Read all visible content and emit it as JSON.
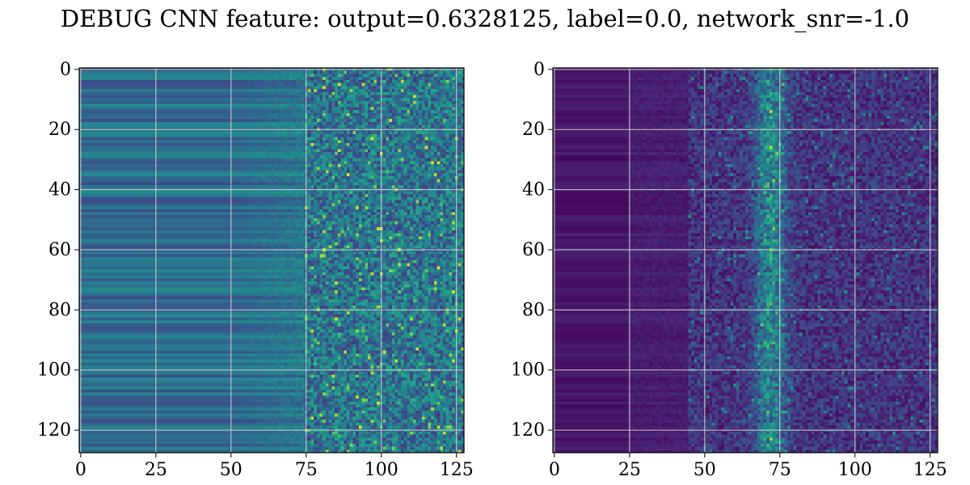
{
  "title": "DEBUG CNN feature: output=0.6328125, label=0.0, network_snr=-1.0",
  "chart_data": [
    {
      "type": "heatmap",
      "colormap": "viridis",
      "rows": 128,
      "cols": 128,
      "x_range": [
        0,
        127
      ],
      "y_range": [
        0,
        127
      ],
      "y_inverted": true,
      "grid": true,
      "x_ticks": [
        0,
        25,
        50,
        75,
        100,
        125
      ],
      "y_ticks": [
        0,
        20,
        40,
        60,
        80,
        100,
        120
      ],
      "x_tick_labels": [
        "0",
        "25",
        "50",
        "75",
        "100",
        "125"
      ],
      "y_tick_labels": [
        "0",
        "20",
        "40",
        "60",
        "80",
        "100",
        "120"
      ],
      "description_profile": "smooth horizontal bands for x < 75, noisy speckle for x >= 75"
    },
    {
      "type": "heatmap",
      "colormap": "viridis",
      "rows": 128,
      "cols": 128,
      "x_range": [
        0,
        127
      ],
      "y_range": [
        0,
        127
      ],
      "y_inverted": true,
      "grid": true,
      "x_ticks": [
        0,
        25,
        50,
        75,
        100,
        125
      ],
      "y_ticks": [
        0,
        20,
        40,
        60,
        80,
        100,
        120
      ],
      "x_tick_labels": [
        "0",
        "25",
        "50",
        "75",
        "100",
        "125"
      ],
      "y_tick_labels": [
        "0",
        "20",
        "40",
        "60",
        "80",
        "100",
        "120"
      ],
      "description_profile": "mostly dark, speckled activity between x ~ 40-127 with bright ridge near x ~ 70-75"
    }
  ]
}
